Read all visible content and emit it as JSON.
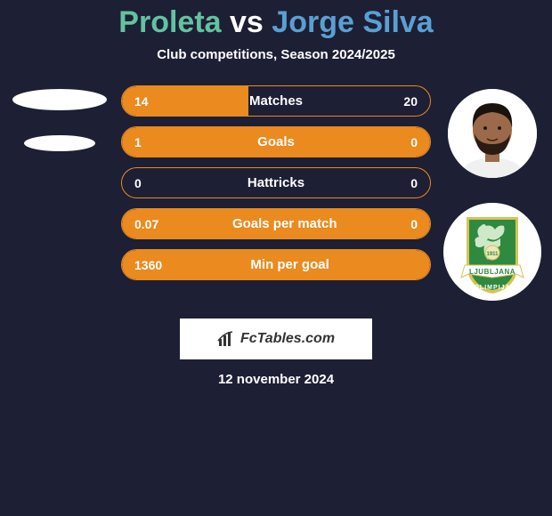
{
  "background_color": "#1d1f34",
  "title": {
    "left": "Proleta",
    "vs": "vs",
    "right": "Jorge Silva",
    "left_color": "#63c2a0",
    "vs_color": "#ffffff",
    "right_color": "#5a9fd4"
  },
  "subtitle": "Club competitions, Season 2024/2025",
  "stats": {
    "border_color": "#ea8a1f",
    "fill_color": "#ea8a1f",
    "rows": [
      {
        "label": "Matches",
        "left": "14",
        "right": "20",
        "fill_pct": 41
      },
      {
        "label": "Goals",
        "left": "1",
        "right": "0",
        "fill_pct": 100
      },
      {
        "label": "Hattricks",
        "left": "0",
        "right": "0",
        "fill_pct": 0
      },
      {
        "label": "Goals per match",
        "left": "0.07",
        "right": "0",
        "fill_pct": 100
      },
      {
        "label": "Min per goal",
        "left": "1360",
        "right": "",
        "fill_pct": 100
      }
    ]
  },
  "footer": {
    "brand": "FcTables.com",
    "date": "12 november 2024"
  },
  "player_right": {
    "skin": "#9a6a4a",
    "hair": "#1b120d",
    "beard": "#2a1c14",
    "shirt": "#f0f0f0"
  },
  "club_right": {
    "shield_bg": "#2f8a3f",
    "shield_border": "#d4c45a",
    "ribbon_bg": "#ffffff",
    "ribbon_text": "LJUBLJANA",
    "name": "OLIMPIJA",
    "dragon_color": "#cfe8c8",
    "year": "1911"
  }
}
